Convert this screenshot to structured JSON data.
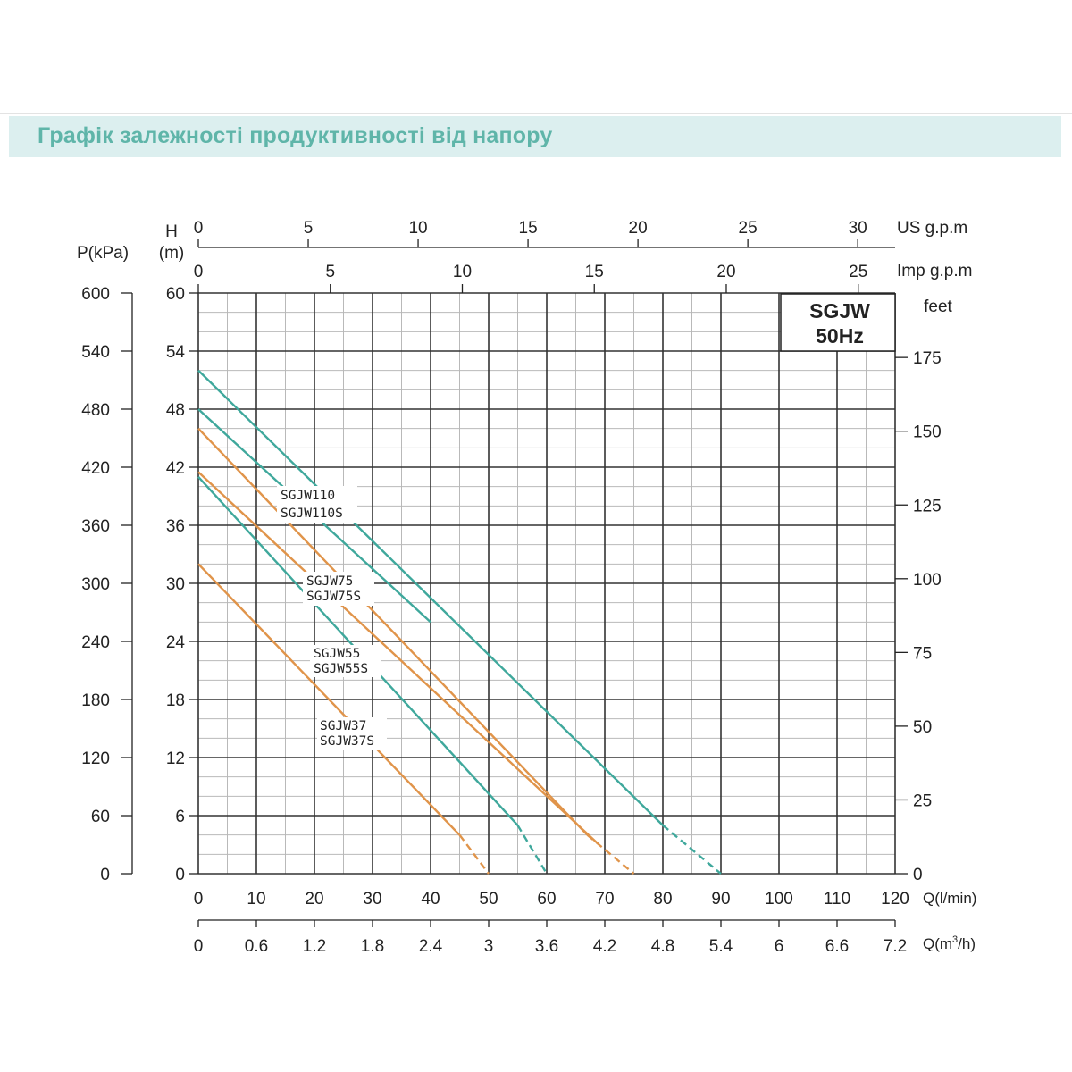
{
  "page_title": "Графік залежності продуктивності від напору",
  "colors": {
    "title_band": "#dcefef",
    "title_text": "#5fb5a9",
    "teal": "#3fa89c",
    "orange": "#e0944a",
    "grid": "#333333",
    "minor_grid": "#b9b9b9"
  },
  "chart_data": {
    "type": "line",
    "badge": {
      "line1": "SGJW",
      "line2": "50Hz"
    },
    "axes": {
      "x_lpm": {
        "label": "Q(l/min)",
        "range": [
          0,
          120
        ],
        "ticks": [
          "0",
          "10",
          "20",
          "30",
          "40",
          "50",
          "60",
          "70",
          "80",
          "90",
          "100",
          "110",
          "120"
        ]
      },
      "x_m3h": {
        "label_main": "Q(m",
        "label_sup": "3",
        "label_end": "/h)",
        "ticks": [
          "0",
          "0.6",
          "1.2",
          "1.8",
          "2.4",
          "3",
          "3.6",
          "4.2",
          "4.8",
          "5.4",
          "6",
          "6.6",
          "7.2"
        ]
      },
      "x_usgpm": {
        "label": "US g.p.m",
        "ticks": [
          "0",
          "5",
          "10",
          "15",
          "20",
          "25",
          "30"
        ],
        "values": [
          0,
          5,
          10,
          15,
          20,
          25,
          30
        ]
      },
      "x_impgpm": {
        "label": "Imp g.p.m",
        "ticks": [
          "0",
          "5",
          "10",
          "15",
          "20",
          "25"
        ],
        "values": [
          0,
          5,
          10,
          15,
          20,
          25
        ]
      },
      "y_head": {
        "label_line1": "H",
        "label_line2": "(m)",
        "range": [
          0,
          60
        ],
        "ticks": [
          "0",
          "6",
          "12",
          "18",
          "24",
          "30",
          "36",
          "42",
          "48",
          "54",
          "60"
        ]
      },
      "y_kpa": {
        "label": "P(kPa)",
        "ticks": [
          "0",
          "60",
          "120",
          "180",
          "240",
          "300",
          "360",
          "420",
          "480",
          "540",
          "600"
        ]
      },
      "y_feet": {
        "label": "feet",
        "ticks": [
          "0",
          "25",
          "50",
          "75",
          "100",
          "125",
          "150",
          "175"
        ],
        "values": [
          0,
          25,
          50,
          75,
          100,
          125,
          150,
          175
        ]
      }
    },
    "series": [
      {
        "name": "SGJW110",
        "color": "teal",
        "solid": [
          [
            0,
            52
          ],
          [
            80,
            5
          ]
        ],
        "dashed": [
          [
            80,
            5
          ],
          [
            90,
            0
          ]
        ]
      },
      {
        "name": "SGJW110S",
        "color": "teal",
        "solid": [
          [
            0,
            48
          ],
          [
            40,
            26
          ]
        ],
        "dashed": []
      },
      {
        "name": "SGJW75",
        "color": "orange",
        "solid": [
          [
            0,
            46
          ],
          [
            67,
            4
          ]
        ],
        "dashed": [
          [
            67,
            4
          ],
          [
            75,
            0
          ]
        ]
      },
      {
        "name": "SGJW75S",
        "color": "orange",
        "solid": [
          [
            0,
            41.5
          ],
          [
            69,
            3
          ]
        ],
        "dashed": []
      },
      {
        "name": "SGJW55",
        "color": "teal",
        "solid": [
          [
            0,
            41
          ],
          [
            55,
            5
          ]
        ],
        "dashed": [
          [
            55,
            5
          ],
          [
            60,
            0
          ]
        ]
      },
      {
        "name": "SGJW37",
        "color": "orange",
        "solid": [
          [
            0,
            32
          ],
          [
            45,
            4
          ]
        ],
        "dashed": [
          [
            45,
            4
          ],
          [
            50,
            0
          ]
        ]
      }
    ],
    "curve_labels": [
      {
        "line1": "SGJW110",
        "line2": "SGJW110S"
      },
      {
        "line1": "SGJW75",
        "line2": "SGJW75S"
      },
      {
        "line1": "SGJW55",
        "line2": "SGJW55S"
      },
      {
        "line1": "SGJW37",
        "line2": "SGJW37S"
      }
    ]
  }
}
